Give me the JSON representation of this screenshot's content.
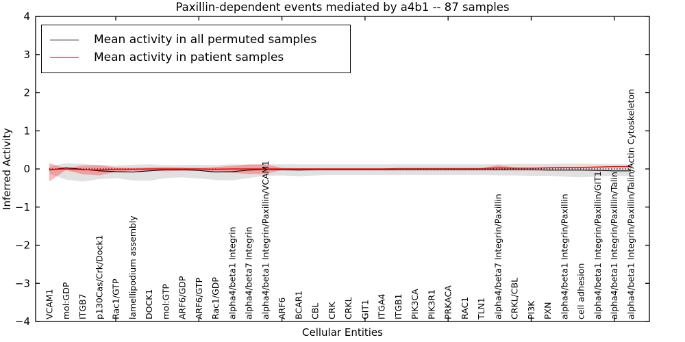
{
  "figure": {
    "title": "Paxillin-dependent events mediated by a4b1 -- 87 samples",
    "xlabel": "Cellular Entities",
    "ylabel": "Inferred Activity"
  },
  "legend": {
    "entries": [
      {
        "label": "Mean activity in all permuted samples",
        "color": "#000000"
      },
      {
        "label": "Mean activity in patient samples",
        "color": "#ff0000"
      }
    ]
  },
  "colors": {
    "permuted_line": "#000000",
    "patient_line": "#ff0000",
    "permuted_band": "#bcbcbc",
    "permuted_band_opacity": 0.45,
    "patient_band": "#ff0000",
    "patient_band_opacity": 0.28,
    "zero_line": "#000000",
    "axis": "#000000"
  },
  "chart_data": {
    "type": "line",
    "title": "Paxillin-dependent events mediated by a4b1 -- 87 samples",
    "xlabel": "Cellular Entities",
    "ylabel": "Inferred Activity",
    "ylim": [
      -4,
      4
    ],
    "yticks": [
      -4,
      -3,
      -2,
      -1,
      0,
      1,
      2,
      3,
      4
    ],
    "yticklabels": [
      "−4",
      "−3",
      "−2",
      "−1",
      "0",
      "1",
      "2",
      "3",
      "4"
    ],
    "grid": false,
    "legend_position": "upper left",
    "reference_line": {
      "y": 0,
      "style": "dotted",
      "color": "#000000"
    },
    "categories": [
      "VCAM1",
      "mol:GDP",
      "ITGB7",
      "p130Cas/Crk/Dock1",
      "Rac1/GTP",
      "lamellipodium assembly",
      "DOCK1",
      "mol:GTP",
      "ARF6/GDP",
      "ARF6/GTP",
      "Rac1/GDP",
      "alpha4/beta1 Integrin",
      "alpha4/beta7 Integrin",
      "alpha4/beta1 Integrin/Paxillin/VCAM1",
      "ARF6",
      "BCAR1",
      "CBL",
      "CRK",
      "CRKL",
      "GIT1",
      "ITGA4",
      "ITGB1",
      "PIK3CA",
      "PIK3R1",
      "PRKACA",
      "RAC1",
      "TLN1",
      "alpha4/beta7 Integrin/Paxillin",
      "CRKL/CBL",
      "PI3K",
      "PXN",
      "alpha4/beta1 Integrin/Paxillin",
      "cell adhesion",
      "alpha4/beta1 Integrin/Paxillin/GIT1",
      "alpha4/beta1 Integrin/Paxillin/Talin",
      "alpha4/beta1 Integrin/Paxillin/Talin/Actin Cytoskeleton"
    ],
    "series": [
      {
        "name": "Mean activity in all permuted samples",
        "color": "#000000",
        "values": [
          -0.03,
          0.03,
          -0.01,
          -0.05,
          -0.07,
          -0.08,
          -0.05,
          -0.02,
          -0.02,
          -0.04,
          -0.08,
          -0.07,
          -0.03,
          -0.01,
          -0.02,
          -0.03,
          -0.02,
          -0.02,
          -0.02,
          -0.02,
          -0.02,
          -0.02,
          -0.02,
          -0.02,
          -0.02,
          -0.02,
          -0.02,
          -0.02,
          -0.02,
          -0.02,
          -0.03,
          -0.03,
          -0.03,
          -0.04,
          -0.05,
          -0.05
        ]
      },
      {
        "name": "Mean activity in patient samples",
        "color": "#ff0000",
        "values": [
          -0.02,
          0.0,
          -0.02,
          -0.03,
          -0.01,
          -0.01,
          0.0,
          0.0,
          0.0,
          0.0,
          -0.01,
          0.0,
          0.0,
          0.0,
          0.0,
          0.0,
          0.0,
          0.0,
          0.0,
          0.0,
          0.0,
          0.01,
          0.01,
          0.01,
          0.01,
          0.01,
          0.01,
          0.03,
          0.02,
          0.02,
          0.03,
          0.04,
          0.04,
          0.05,
          0.06,
          0.06
        ]
      }
    ],
    "bands": [
      {
        "name": "permuted-samples-range",
        "color": "#bcbcbc",
        "opacity": 0.45,
        "upper": [
          0.06,
          0.15,
          0.13,
          0.1,
          0.09,
          0.11,
          0.12,
          0.1,
          0.1,
          0.11,
          0.1,
          0.12,
          0.11,
          0.12,
          0.12,
          0.12,
          0.12,
          0.12,
          0.12,
          0.12,
          0.12,
          0.12,
          0.12,
          0.12,
          0.12,
          0.12,
          0.12,
          0.12,
          0.13,
          0.13,
          0.13,
          0.14,
          0.14,
          0.13,
          0.12,
          0.12
        ],
        "lower": [
          -0.12,
          -0.28,
          -0.33,
          -0.27,
          -0.24,
          -0.3,
          -0.31,
          -0.24,
          -0.22,
          -0.25,
          -0.29,
          -0.3,
          -0.24,
          -0.18,
          -0.17,
          -0.19,
          -0.17,
          -0.16,
          -0.16,
          -0.16,
          -0.16,
          -0.16,
          -0.16,
          -0.16,
          -0.16,
          -0.16,
          -0.16,
          -0.17,
          -0.17,
          -0.18,
          -0.18,
          -0.2,
          -0.22,
          -0.2,
          -0.18,
          -0.18
        ]
      },
      {
        "name": "patient-samples-range",
        "color": "#ff0000",
        "opacity": 0.28,
        "upper": [
          0.15,
          0.02,
          0.09,
          0.1,
          0.04,
          0.03,
          0.04,
          0.05,
          0.04,
          0.03,
          0.05,
          0.08,
          0.12,
          0.12,
          0.03,
          0.02,
          0.02,
          0.02,
          0.02,
          0.02,
          0.02,
          0.02,
          0.02,
          0.02,
          0.02,
          0.02,
          0.02,
          0.1,
          0.04,
          0.03,
          0.04,
          0.05,
          0.05,
          0.06,
          0.07,
          0.08
        ],
        "lower": [
          -0.33,
          -0.03,
          -0.14,
          -0.17,
          -0.08,
          -0.05,
          -0.05,
          -0.06,
          -0.05,
          -0.04,
          -0.07,
          -0.1,
          -0.13,
          -0.13,
          -0.03,
          -0.02,
          -0.01,
          -0.01,
          -0.01,
          -0.01,
          -0.01,
          0.0,
          0.0,
          0.0,
          0.0,
          0.0,
          0.0,
          -0.02,
          0.0,
          0.01,
          0.02,
          0.03,
          0.03,
          0.04,
          0.05,
          0.04
        ]
      }
    ]
  }
}
